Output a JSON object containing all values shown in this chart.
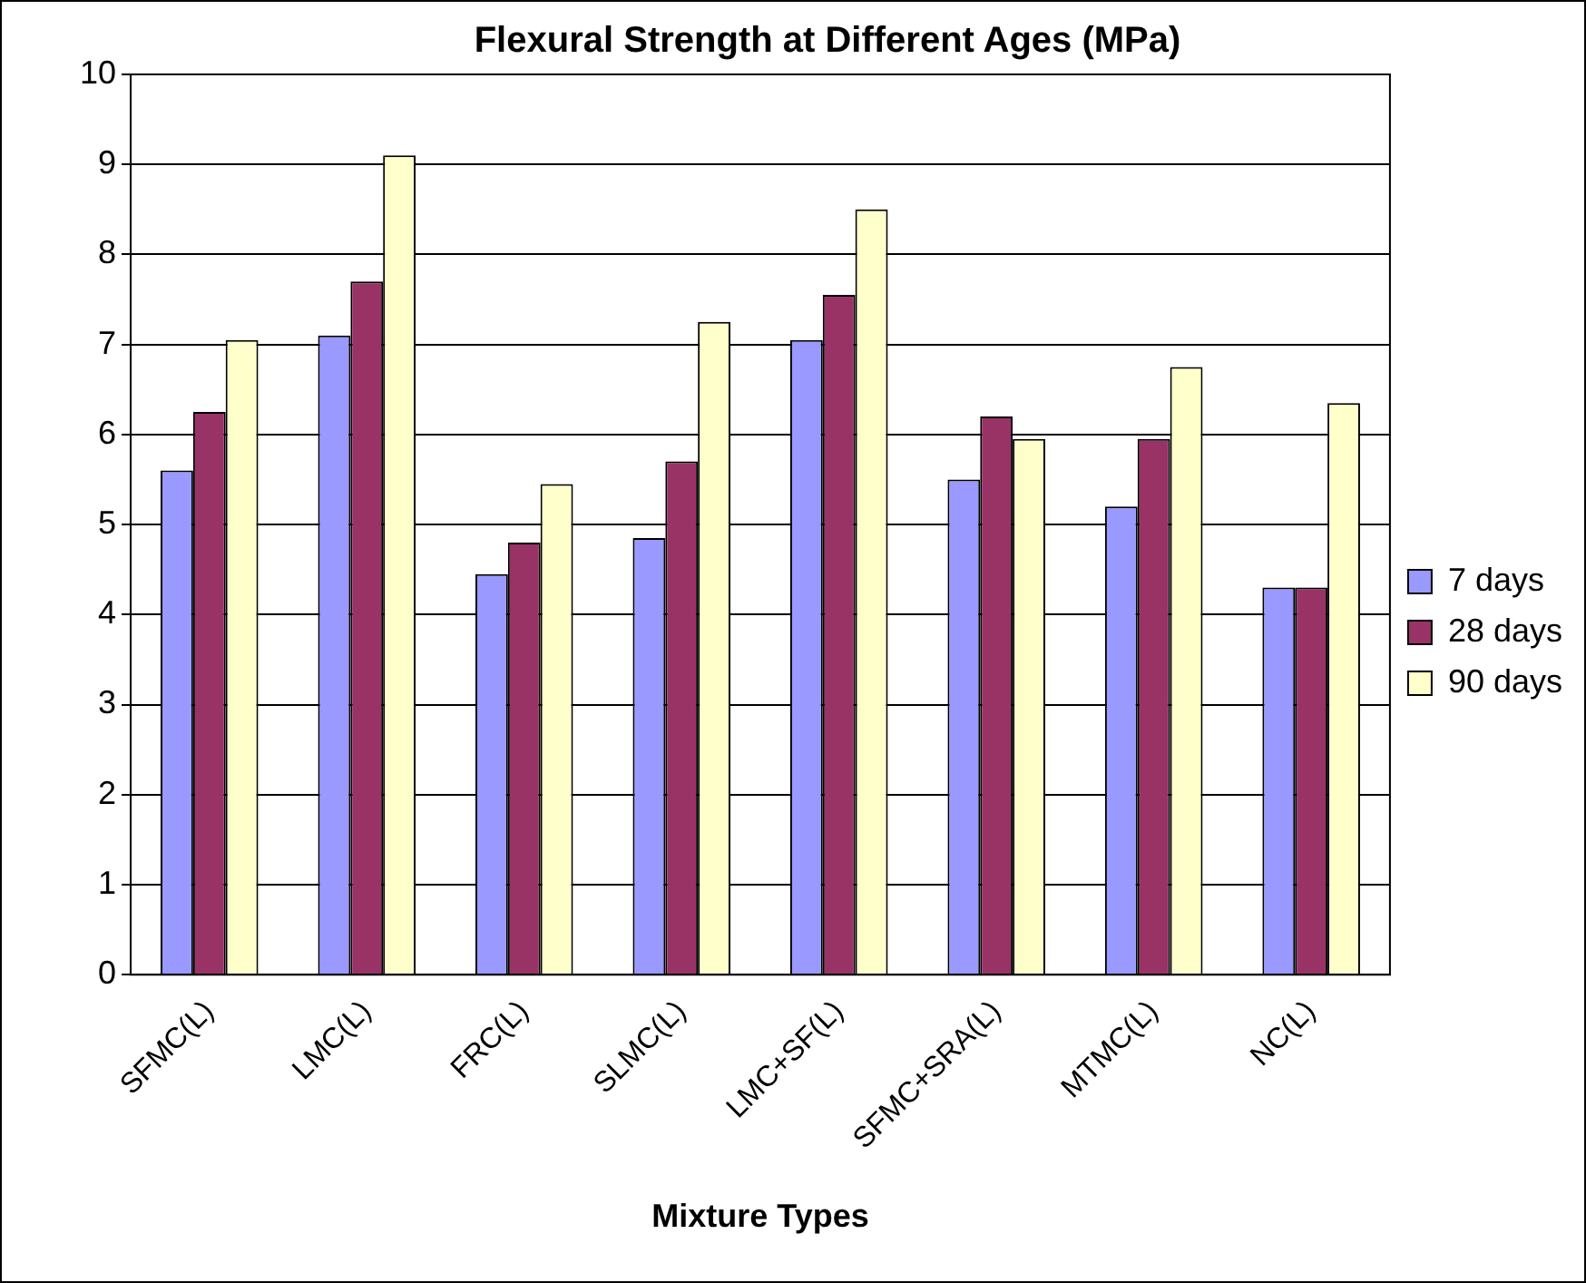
{
  "chart_data": {
    "type": "bar",
    "title": "Flexural Strength at Different Ages (MPa)",
    "xlabel": "Mixture Types",
    "categories": [
      "SFMC(L)",
      "LMC(L)",
      "FRC(L)",
      "SLMC(L)",
      "LMC+SF(L)",
      "SFMC+SRA(L)",
      "MTMC(L)",
      "NC(L)"
    ],
    "series": [
      {
        "name": "7 days",
        "color": "#9999ff",
        "values": [
          5.6,
          7.1,
          4.45,
          4.85,
          7.05,
          5.5,
          5.2,
          4.3
        ]
      },
      {
        "name": "28 days",
        "color": "#993366",
        "values": [
          6.25,
          7.7,
          4.8,
          5.7,
          7.55,
          6.2,
          5.95,
          4.3
        ]
      },
      {
        "name": "90 days",
        "color": "#ffffcc",
        "values": [
          7.05,
          9.1,
          5.45,
          7.25,
          8.5,
          5.95,
          6.75,
          6.35
        ]
      }
    ],
    "ylim": [
      0,
      10
    ],
    "yticks": [
      0,
      1,
      2,
      3,
      4,
      5,
      6,
      7,
      8,
      9,
      10
    ],
    "grid": "y",
    "legend": "right"
  }
}
